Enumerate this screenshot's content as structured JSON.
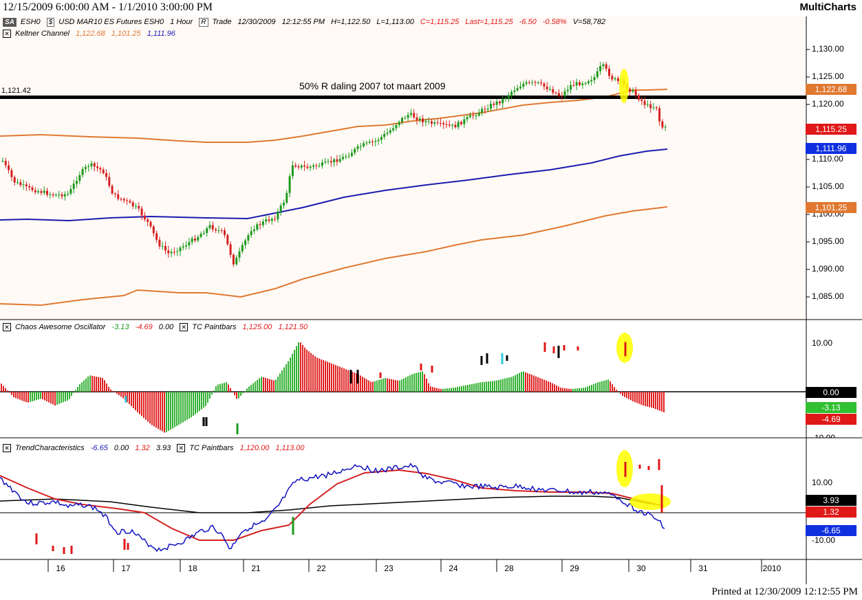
{
  "header": {
    "date_range": "12/15/2009 6:00:00 AM - 1/1/2010 3:00:00 PM",
    "brand": "MultiCharts"
  },
  "instrument_bar": {
    "sa_button": "SA",
    "symbol": "ESH0",
    "dollar_btn": "$",
    "description": "USD MAR10 ES Futures ESH0",
    "resolution": "1 Hour",
    "r_btn": "R",
    "trade": "Trade",
    "datetime": "12/30/2009",
    "time": "12:12:55 PM",
    "high": "H=1,122.50",
    "low": "L=1,113.00",
    "close": "C=1,115.25",
    "last": "Last=1,115.25",
    "change": "-6.50",
    "change_pct": "-0.58%",
    "volume": "V=58,782"
  },
  "keltner": {
    "name": "Keltner Channel",
    "upper": "1,122.68",
    "lower": "1,101.25",
    "mid": "1,111.96"
  },
  "price_pane": {
    "hline_label": "1,121.42",
    "annotation": "50% R daling 2007 tot maart 2009",
    "axis_ticks": [
      "1,130.00",
      "1,125.00",
      "1,120.00",
      "1,115.00",
      "1,110.00",
      "1,105.00",
      "1,100.00",
      "1,095.00",
      "1,090.00",
      "1,085.00"
    ],
    "labels": {
      "upper": "1,122.68",
      "last": "1,115.25",
      "mid": "1,111.96",
      "lower": "1,101.25"
    }
  },
  "ao_pane": {
    "name": "Chaos Awesome Oscillator",
    "v1": "-3.13",
    "v2": "-4.69",
    "v3": "0.00",
    "paint_name": "TC Paintbars",
    "p1": "1,125.00",
    "p2": "1,121.50",
    "axis_ticks": [
      "10.00",
      "-10.00"
    ],
    "labels": {
      "zero": "0.00",
      "v1": "-3.13",
      "v2": "-4.69"
    }
  },
  "trend_pane": {
    "name": "TrendCharacteristics",
    "v1": "-6.65",
    "v2": "0.00",
    "v3": "1.32",
    "v4": "3.93",
    "paint_name": "TC Paintbars",
    "p1": "1,120.00",
    "p2": "1,113.00",
    "axis_ticks": [
      "10.00",
      "-10.00"
    ],
    "labels": {
      "a": "3.93",
      "b": "1.32",
      "c": "-6.65"
    }
  },
  "x_axis": {
    "labels": [
      "16",
      "17",
      "18",
      "21",
      "22",
      "23",
      "24",
      "28",
      "29",
      "30",
      "31",
      "2010"
    ]
  },
  "footer": {
    "printed": "Printed at 12/30/2009 12:12:55 PM"
  },
  "colors": {
    "keltner_upper_lower": "#e07830",
    "keltner_mid": "#1a1ab0",
    "up_candle": "#1c9a1c",
    "down_candle": "#d42020",
    "highlight": "#ffff00",
    "label_red": "#e01818",
    "label_blue": "#1030e0",
    "label_green": "#30c030",
    "label_orange": "#e07830",
    "label_black": "#000000"
  }
}
